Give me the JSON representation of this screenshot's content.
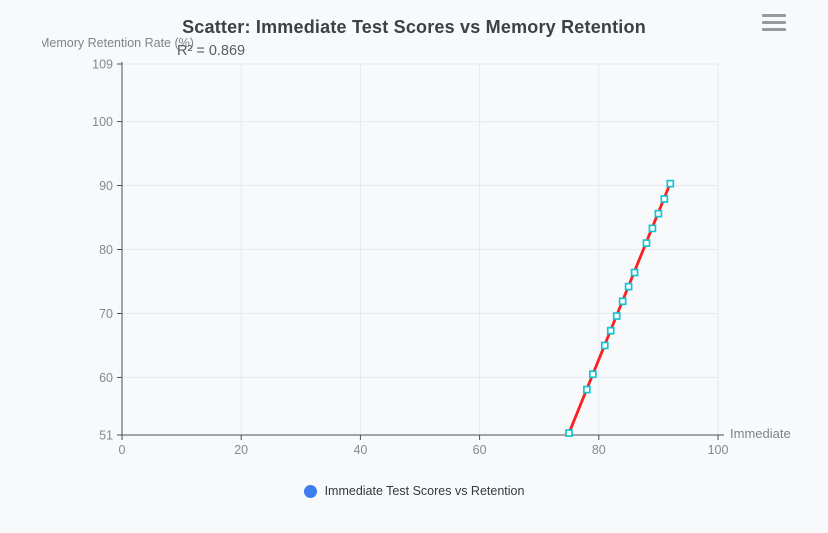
{
  "header": {
    "title": "Scatter: Immediate Test Scores vs Memory Retention"
  },
  "toolbox": {
    "menu_icon": "hamburger-icon"
  },
  "annotations": {
    "r_squared": "R² = 0.869"
  },
  "axes": {
    "y_name": "Memory Retention Rate (%)",
    "x_name": "Immediate"
  },
  "legend": {
    "label": "Immediate Test Scores vs Retention",
    "color": "#3d7cf0"
  },
  "colors": {
    "background": "#f8f9fa",
    "title_text": "#3d4045",
    "axis_line": "#4b4f54",
    "tick_label": "#85898f",
    "grid_line": "#e4eaf1",
    "trend_line": "#f92020",
    "marker_stroke": "#14c4cf",
    "marker_fill": "#ffffff",
    "legend_dot": "#3d7cf0",
    "legend_text": "#343a40",
    "annotation_text": "#585c61",
    "axis_name_text": "#7e838a",
    "menu_icon": "#97999d"
  },
  "chart_data": {
    "type": "scatter",
    "title": "Scatter: Immediate Test Scores vs Memory Retention",
    "xlabel": "Immediate",
    "ylabel": "Memory Retention Rate (%)",
    "xlim": [
      0,
      100
    ],
    "ylim": [
      51,
      109
    ],
    "x_ticks": [
      0,
      20,
      40,
      60,
      80,
      100
    ],
    "y_ticks": [
      51,
      60,
      70,
      80,
      90,
      100,
      109
    ],
    "grid": true,
    "legend_position": "bottom",
    "series": [
      {
        "name": "Immediate Test Scores vs Retention",
        "type": "scatter",
        "points": [
          [
            75,
            51.3
          ],
          [
            78,
            58.1
          ],
          [
            79,
            60.5
          ],
          [
            81,
            65.0
          ],
          [
            82,
            67.3
          ],
          [
            83,
            69.6
          ],
          [
            84,
            71.9
          ],
          [
            85,
            74.2
          ],
          [
            86,
            76.4
          ],
          [
            88,
            81.0
          ],
          [
            89,
            83.3
          ],
          [
            90,
            85.6
          ],
          [
            91,
            87.9
          ],
          [
            92,
            90.3
          ]
        ]
      }
    ],
    "trendline": {
      "type": "linear",
      "from": [
        75,
        51.3
      ],
      "to": [
        92,
        90.4
      ],
      "r_squared": 0.869
    }
  }
}
